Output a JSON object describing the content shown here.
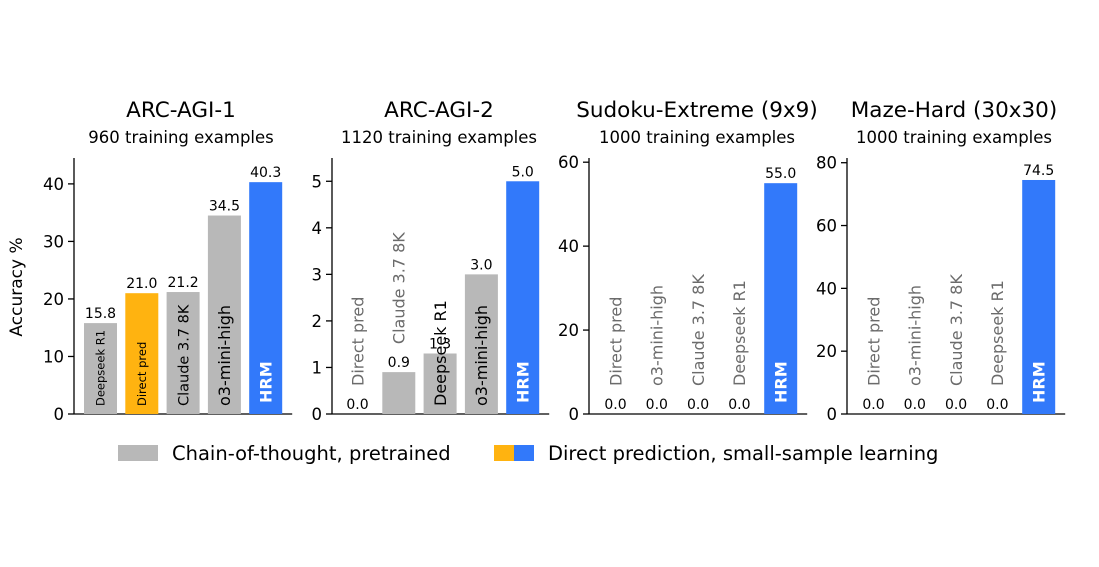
{
  "figure": {
    "ylabel": "Accuracy %",
    "legend": {
      "position": "bottom-center",
      "items": [
        {
          "label": "Chain-of-thought, pretrained",
          "colors": [
            "#b8b8b8"
          ]
        },
        {
          "label": "Direct prediction, small-sample learning",
          "colors": [
            "#ffb310",
            "#3279fa"
          ]
        }
      ]
    },
    "colors": {
      "pretrained": "#b8b8b8",
      "direct": "#ffb310",
      "hrm": "#3279fa"
    }
  },
  "chart_data": [
    {
      "type": "bar",
      "title": "ARC-AGI-1",
      "subtitle": "960 training examples",
      "ylabel": "Accuracy %",
      "ylim": [
        0,
        44.5
      ],
      "yticks": [
        0,
        10,
        20,
        30,
        40
      ],
      "categories": [
        "Deepseek R1",
        "Direct pred",
        "Claude 3.7 8K",
        "o3-mini-high",
        "HRM"
      ],
      "values": [
        15.8,
        21.0,
        21.2,
        34.5,
        40.3
      ],
      "value_labels": [
        "15.8",
        "21.0",
        "21.2",
        "34.5",
        "40.3"
      ],
      "bar_groups": [
        "pretrained",
        "direct",
        "pretrained",
        "pretrained",
        "hrm"
      ]
    },
    {
      "type": "bar",
      "title": "ARC-AGI-2",
      "subtitle": "1120 training examples",
      "ylabel": "",
      "ylim": [
        0,
        5.5
      ],
      "yticks": [
        0,
        1,
        2,
        3,
        4,
        5
      ],
      "categories": [
        "Direct pred",
        "Claude 3.7 8K",
        "Deepseek R1",
        "o3-mini-high",
        "HRM"
      ],
      "values": [
        0.0,
        0.9,
        1.3,
        3.0,
        5.0
      ],
      "value_labels": [
        "0.0",
        "0.9",
        "1.3",
        "3.0",
        "5.0"
      ],
      "bar_groups": [
        "direct",
        "pretrained",
        "pretrained",
        "pretrained",
        "hrm"
      ]
    },
    {
      "type": "bar",
      "title": "Sudoku-Extreme (9x9)",
      "subtitle": "1000 training examples",
      "ylabel": "",
      "ylim": [
        0,
        61
      ],
      "yticks": [
        0,
        20,
        40,
        60
      ],
      "categories": [
        "Direct pred",
        "o3-mini-high",
        "Claude 3.7 8K",
        "Deepseek R1",
        "HRM"
      ],
      "values": [
        0.0,
        0.0,
        0.0,
        0.0,
        55.0
      ],
      "value_labels": [
        "0.0",
        "0.0",
        "0.0",
        "0.0",
        "55.0"
      ],
      "bar_groups": [
        "direct",
        "pretrained",
        "pretrained",
        "pretrained",
        "hrm"
      ]
    },
    {
      "type": "bar",
      "title": "Maze-Hard (30x30)",
      "subtitle": "1000 training examples",
      "ylabel": "",
      "ylim": [
        0,
        81.5
      ],
      "yticks": [
        0,
        20,
        40,
        60,
        80
      ],
      "categories": [
        "Direct pred",
        "o3-mini-high",
        "Claude 3.7 8K",
        "Deepseek R1",
        "HRM"
      ],
      "values": [
        0.0,
        0.0,
        0.0,
        0.0,
        74.5
      ],
      "value_labels": [
        "0.0",
        "0.0",
        "0.0",
        "0.0",
        "74.5"
      ],
      "bar_groups": [
        "direct",
        "pretrained",
        "pretrained",
        "pretrained",
        "hrm"
      ]
    }
  ]
}
